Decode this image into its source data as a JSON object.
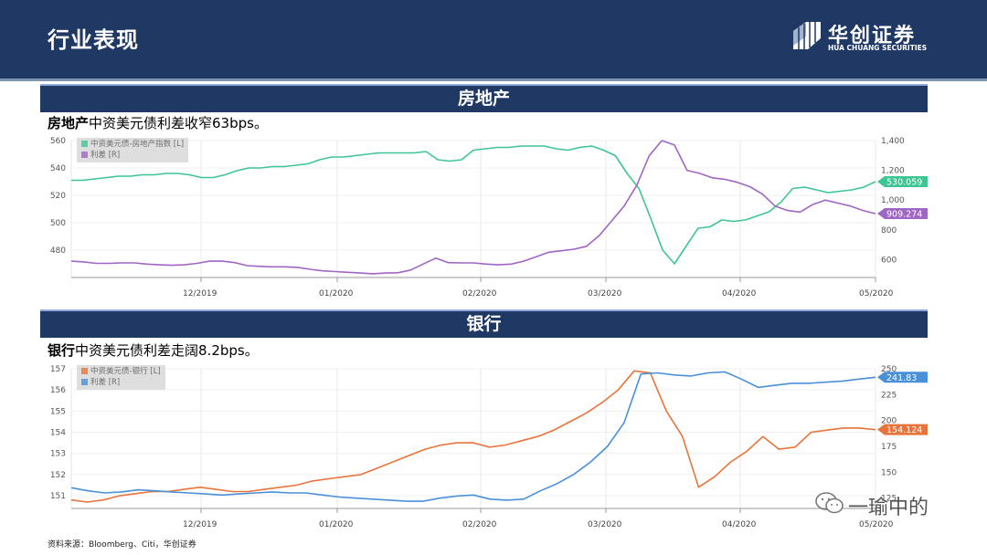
{
  "header": {
    "title": "行业表现",
    "logo_main": "华创证券",
    "logo_sub": "HUA CHUANG SECURITIES"
  },
  "colors": {
    "header_bg": "#1f3864",
    "green": "#3ec594",
    "purple": "#a066c4",
    "orange": "#e8743b",
    "blue": "#4a90d9"
  },
  "sections": [
    {
      "bar_label": "房地产",
      "subtitle_bold": "房地产",
      "subtitle_rest": "中资美元债利差收窄63bps。"
    },
    {
      "bar_label": "银行",
      "subtitle_bold": "银行",
      "subtitle_rest": "中资美元债利差走阔8.2bps。"
    }
  ],
  "source": "资料来源：Bloomberg、Citi，华创证券",
  "watermark": "一瑜中的",
  "chart_data": [
    {
      "type": "line",
      "x_ticks": [
        "12/2019",
        "01/2020",
        "02/2020",
        "03/2020",
        "04/2020",
        "05/2020"
      ],
      "left_axis": {
        "ticks": [
          "560",
          "540",
          "520",
          "500",
          "480"
        ],
        "range": [
          460,
          560
        ]
      },
      "right_axis": {
        "ticks": [
          "1,400",
          "1,200",
          "1,000",
          "800",
          "600"
        ],
        "range": [
          480,
          1400
        ]
      },
      "series": [
        {
          "name": "中资美元债-房地产指数 [L]",
          "axis": "left",
          "color": "#3ec594",
          "last_label": "530.059",
          "values": [
            531,
            531,
            532,
            533,
            534,
            534,
            535,
            535,
            536,
            536,
            535,
            533,
            533,
            535,
            538,
            540,
            540,
            541,
            541,
            542,
            543,
            546,
            548,
            548,
            549,
            550,
            551,
            551,
            551,
            551,
            552,
            546,
            545,
            546,
            553,
            554,
            555,
            555,
            556,
            556,
            556,
            554,
            553,
            555,
            556,
            553,
            549,
            536,
            525,
            503,
            480,
            470,
            483,
            496,
            497,
            502,
            501,
            502,
            505,
            508,
            515,
            525,
            526,
            524,
            522,
            523,
            524,
            526,
            530
          ]
        },
        {
          "name": "利差 [R]",
          "axis": "right",
          "color": "#a066c4",
          "last_label": "909.274",
          "values": [
            590,
            585,
            575,
            575,
            578,
            578,
            570,
            565,
            562,
            565,
            575,
            590,
            590,
            580,
            560,
            555,
            552,
            552,
            548,
            535,
            525,
            520,
            515,
            510,
            505,
            510,
            512,
            530,
            570,
            610,
            580,
            578,
            578,
            570,
            565,
            570,
            590,
            620,
            650,
            660,
            670,
            690,
            760,
            860,
            960,
            1100,
            1300,
            1400,
            1370,
            1200,
            1180,
            1150,
            1140,
            1120,
            1090,
            1040,
            960,
            930,
            920,
            970,
            1000,
            980,
            960,
            930,
            909
          ]
        }
      ]
    },
    {
      "type": "line",
      "x_ticks": [
        "12/2019",
        "01/2020",
        "02/2020",
        "03/2020",
        "04/2020",
        "05/2020"
      ],
      "left_axis": {
        "ticks": [
          "157",
          "156",
          "155",
          "154",
          "153",
          "152",
          "151"
        ],
        "range": [
          150.4,
          157
        ]
      },
      "right_axis": {
        "ticks": [
          "250",
          "225",
          "200",
          "175",
          "150",
          "125"
        ],
        "range": [
          115,
          250
        ]
      },
      "series": [
        {
          "name": "中资美元债-银行 [L]",
          "axis": "left",
          "color": "#e8743b",
          "last_label": "154.124",
          "values": [
            150.8,
            150.7,
            150.8,
            151.0,
            151.1,
            151.2,
            151.2,
            151.3,
            151.4,
            151.3,
            151.2,
            151.2,
            151.3,
            151.4,
            151.5,
            151.7,
            151.8,
            151.9,
            152.0,
            152.3,
            152.6,
            152.9,
            153.2,
            153.4,
            153.5,
            153.5,
            153.3,
            153.4,
            153.6,
            153.8,
            154.1,
            154.5,
            154.9,
            155.4,
            156.0,
            156.9,
            156.8,
            155.0,
            153.8,
            151.4,
            151.9,
            152.6,
            153.1,
            153.8,
            153.2,
            153.3,
            154.0,
            154.1,
            154.2,
            154.2,
            154.124
          ]
        },
        {
          "name": "利差 [R]",
          "axis": "right",
          "color": "#4a90d9",
          "last_label": "241.83",
          "values": [
            135,
            132,
            130,
            131,
            133,
            132,
            131,
            130,
            129,
            128,
            129,
            130,
            131,
            130,
            130,
            128,
            126,
            125,
            124,
            123,
            122,
            122,
            125,
            127,
            128,
            124,
            123,
            124,
            132,
            139,
            148,
            160,
            175,
            198,
            245,
            246,
            244,
            243,
            246,
            247,
            240,
            232,
            234,
            236,
            236,
            237,
            238,
            240,
            241.83
          ]
        }
      ]
    }
  ]
}
